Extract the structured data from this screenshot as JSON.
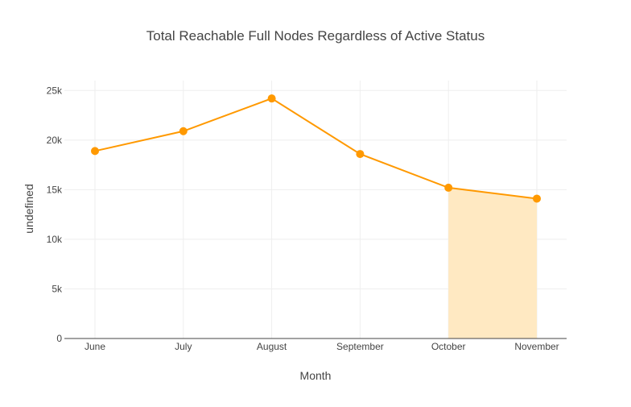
{
  "chart_data": {
    "type": "line",
    "title": "Total Reachable Full Nodes Regardless of Active Status",
    "xlabel": "Month",
    "ylabel": "undefined",
    "categories": [
      "June",
      "July",
      "August",
      "September",
      "October",
      "November"
    ],
    "series": [
      {
        "values": [
          18900,
          20900,
          24200,
          18600,
          15200,
          14100
        ],
        "color": "#ff9900"
      }
    ],
    "shaded_range": {
      "from": "October",
      "to": "November",
      "color": "#ffe9c2"
    },
    "ylim": [
      0,
      26000
    ],
    "yticks": [
      0,
      5000,
      10000,
      15000,
      20000,
      25000
    ],
    "ytick_labels": [
      "0",
      "5k",
      "10k",
      "15k",
      "20k",
      "25k"
    ],
    "grid": true,
    "legend": "none"
  }
}
